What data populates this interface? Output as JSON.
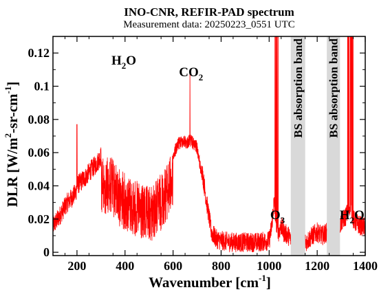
{
  "chart_data": {
    "type": "line",
    "title": "INO-CNR, REFIR-PAD spectrum",
    "subtitle": "Measurement data: 20250223_0551 UTC",
    "xlabel": "Wavenumber [cm",
    "xlabel_sup": "-1",
    "xlabel_tail": "]",
    "ylabel_parts": [
      "DLR [W/m",
      "2",
      "-sr-cm",
      "-1",
      "]"
    ],
    "xlim": [
      100,
      1400
    ],
    "ylim": [
      -0.002,
      0.13
    ],
    "x_ticks": [
      200,
      400,
      600,
      800,
      1000,
      1200,
      1400
    ],
    "x_tick_labels": [
      "200",
      "400",
      "600",
      "800",
      "1000",
      "1200",
      "1400"
    ],
    "y_ticks": [
      0,
      0.02,
      0.04,
      0.06,
      0.08,
      0.1,
      0.12
    ],
    "y_tick_labels": [
      "0",
      "0.02",
      "0.04",
      "0.06",
      "0.08",
      "0.1",
      "0.12"
    ],
    "grid": false,
    "line_color": "#ff0000",
    "band_color": "#d9d9d9",
    "shaded_bands": [
      {
        "x0": 1090,
        "x1": 1150,
        "label": "BS absorption band"
      },
      {
        "x0": 1240,
        "x1": 1295,
        "label": "BS absorption band"
      }
    ],
    "annotations": [
      {
        "main": "H",
        "sub": "2",
        "tail": "O",
        "x": 395,
        "y": 0.113
      },
      {
        "main": "CO",
        "sub": "2",
        "tail": "",
        "x": 675,
        "y": 0.106
      },
      {
        "main": "O",
        "sub": "3",
        "tail": "",
        "x": 1035,
        "y": 0.02
      },
      {
        "main": "H",
        "sub": "2",
        "tail": "O",
        "x": 1345,
        "y": 0.02
      }
    ],
    "series": [
      {
        "x": [
          100,
          120,
          140,
          160,
          180,
          195,
          200,
          205,
          220,
          240,
          260,
          280,
          300,
          320,
          340,
          360,
          380,
          400,
          420,
          440,
          460,
          480,
          500,
          520,
          540,
          560,
          580,
          600,
          620,
          640,
          660,
          670,
          680,
          700,
          720,
          740,
          760,
          780,
          800,
          850,
          900,
          950,
          1000,
          1010,
          1020,
          1030,
          1040,
          1050,
          1060,
          1080,
          1090,
          1150,
          1160,
          1180,
          1200,
          1220,
          1240,
          1295,
          1300,
          1310,
          1320,
          1330,
          1340,
          1350,
          1360,
          1380,
          1400
        ],
        "y": [
          0.016,
          0.02,
          0.025,
          0.03,
          0.033,
          0.036,
          0.04,
          0.041,
          0.043,
          0.046,
          0.05,
          0.053,
          0.058,
          0.057,
          0.058,
          0.054,
          0.05,
          0.048,
          0.046,
          0.044,
          0.042,
          0.04,
          0.04,
          0.042,
          0.046,
          0.05,
          0.055,
          0.062,
          0.069,
          0.071,
          0.07,
          0.072,
          0.07,
          0.067,
          0.05,
          0.03,
          0.012,
          0.008,
          0.007,
          0.006,
          0.006,
          0.006,
          0.007,
          0.015,
          0.03,
          0.018,
          0.012,
          0.016,
          0.012,
          0.01,
          0.008,
          0.006,
          0.007,
          0.01,
          0.012,
          0.01,
          0.012,
          0.015,
          0.018,
          0.02,
          0.022,
          0.025,
          0.03,
          0.02,
          0.018,
          0.016,
          0.015
        ]
      }
    ]
  }
}
